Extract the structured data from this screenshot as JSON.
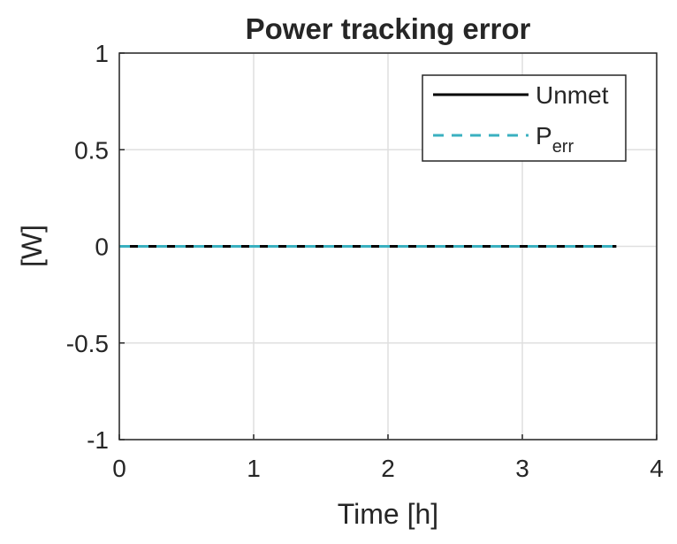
{
  "chart_data": {
    "type": "line",
    "title": "Power tracking error",
    "x_label": "Time [h]",
    "y_label": "[W]",
    "x": [
      0,
      3.7
    ],
    "series": [
      {
        "name": "Unmet",
        "color": "#000000",
        "dash": "solid",
        "values": [
          0,
          0
        ]
      },
      {
        "name": "P_err",
        "color": "#3ab0c0",
        "dash": "dashed",
        "values": [
          0,
          0
        ]
      }
    ],
    "xlim": [
      0,
      4
    ],
    "xticks": [
      0,
      1,
      2,
      3,
      4
    ],
    "ylim": [
      -1,
      1
    ],
    "yticks": [
      -1,
      -0.5,
      0,
      0.5,
      1
    ],
    "grid": true,
    "legend": "top-right"
  }
}
